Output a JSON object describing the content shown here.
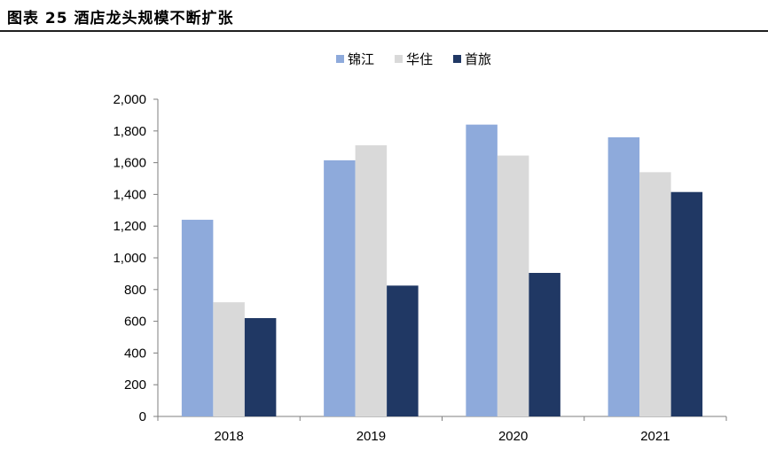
{
  "figure": {
    "title": "图表 25  酒店龙头规模不断扩张"
  },
  "chart_data": {
    "type": "bar",
    "categories": [
      "2018",
      "2019",
      "2020",
      "2021"
    ],
    "series": [
      {
        "name": "锦江",
        "values": [
          1240,
          1615,
          1840,
          1760
        ],
        "color": "#8eaadb"
      },
      {
        "name": "华住",
        "values": [
          720,
          1710,
          1645,
          1540
        ],
        "color": "#d9d9d9"
      },
      {
        "name": "首旅",
        "values": [
          620,
          825,
          905,
          1415
        ],
        "color": "#203864"
      }
    ],
    "ylim": [
      0,
      2000
    ],
    "yticks": [
      "0",
      "200",
      "400",
      "600",
      "800",
      "1,000",
      "1,200",
      "1,400",
      "1,600",
      "1,800",
      "2,000"
    ],
    "title": "",
    "xlabel": "",
    "ylabel": "",
    "legend_position": "top-center",
    "grid": false
  }
}
